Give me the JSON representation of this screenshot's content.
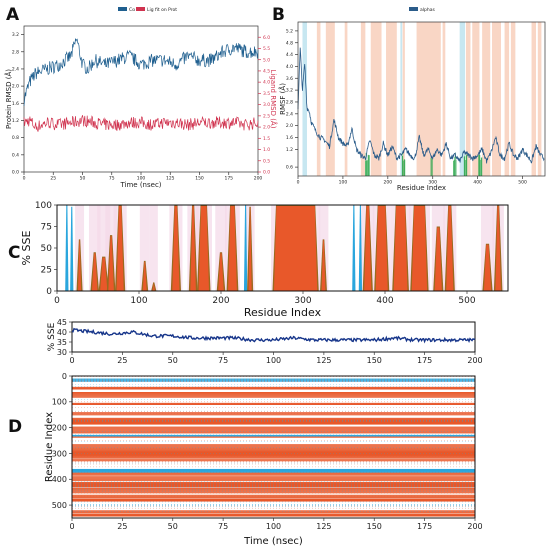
{
  "panels": {
    "a": "A",
    "b": "B",
    "c": "C",
    "d": "D"
  },
  "colors": {
    "protein_rmsd": "#1f5f8f",
    "ligand_rmsd": "#d0334f",
    "rmsf": "#2b5c8a",
    "alpha_bg": "#f7c8b2",
    "beta_bg": "#bde3ef",
    "contact": "#2fa84f",
    "helix": "#e8582a",
    "helix_dark": "#9a6a1f",
    "strand": "#2aa6dd",
    "sse_line": "#16358a",
    "gap_band": "#f3d8e8"
  },
  "chart_data": [
    {
      "panel": "A",
      "type": "line",
      "xlabel": "Time (nsec)",
      "ylabel": "Protein RMSD (Å)",
      "y2label": "Ligand RMSD (Å)",
      "legend": [
        "Cα",
        "Lig fit on Prot"
      ],
      "legend_position": "top-center",
      "xlim": [
        0,
        200
      ],
      "ylim": [
        0,
        3.4
      ],
      "y2lim": [
        0,
        6.5
      ],
      "xticks": [
        0,
        25,
        50,
        75,
        100,
        125,
        150,
        175,
        200
      ],
      "yticks": [
        0.0,
        0.4,
        0.8,
        1.2,
        1.6,
        2.0,
        2.4,
        2.8,
        3.2
      ],
      "y2ticks": [
        0.0,
        0.5,
        1.0,
        1.5,
        2.0,
        2.5,
        3.0,
        3.5,
        4.0,
        4.5,
        5.0,
        5.5,
        6.0
      ],
      "series": [
        {
          "name": "Cα",
          "x": [
            0,
            5,
            10,
            20,
            30,
            40,
            45,
            50,
            55,
            60,
            70,
            80,
            90,
            100,
            110,
            120,
            130,
            140,
            150,
            160,
            170,
            180,
            190,
            200
          ],
          "y": [
            1.7,
            2.1,
            2.3,
            2.4,
            2.5,
            2.7,
            3.1,
            2.5,
            2.4,
            2.6,
            2.5,
            2.6,
            2.7,
            2.5,
            2.6,
            2.6,
            2.5,
            2.7,
            2.6,
            2.6,
            2.8,
            2.9,
            2.8,
            2.8
          ]
        },
        {
          "name": "Lig fit on Prot",
          "x": [
            0,
            5,
            10,
            20,
            30,
            40,
            50,
            60,
            70,
            80,
            90,
            100,
            110,
            120,
            130,
            140,
            150,
            160,
            170,
            180,
            190,
            200
          ],
          "y": [
            2.2,
            2.3,
            2.0,
            2.2,
            2.1,
            2.2,
            2.3,
            2.2,
            2.1,
            2.1,
            2.2,
            2.2,
            2.1,
            2.2,
            2.2,
            2.1,
            2.2,
            2.2,
            2.2,
            2.2,
            2.1,
            2.2
          ]
        }
      ]
    },
    {
      "panel": "B",
      "type": "line",
      "xlabel": "Residue Index",
      "ylabel": "RMSF (Å)",
      "legend": [
        "alphas"
      ],
      "legend_position": "top-center",
      "xlim": [
        0,
        550
      ],
      "ylim": [
        0.3,
        5.5
      ],
      "xticks": [
        0,
        100,
        200,
        300,
        400,
        500
      ],
      "yticks": [
        0.6,
        1.2,
        1.6,
        2.0,
        2.4,
        2.8,
        3.2,
        3.6,
        4.0,
        4.4,
        4.8,
        5.2
      ],
      "series": [
        {
          "name": "alphas",
          "x": [
            0,
            5,
            10,
            15,
            20,
            25,
            30,
            40,
            50,
            60,
            70,
            80,
            90,
            100,
            110,
            120,
            130,
            140,
            150,
            160,
            170,
            180,
            190,
            200,
            210,
            220,
            230,
            240,
            250,
            260,
            270,
            280,
            290,
            300,
            310,
            320,
            330,
            340,
            350,
            360,
            370,
            380,
            390,
            400,
            410,
            420,
            430,
            440,
            450,
            460,
            470,
            480,
            490,
            500,
            510,
            520,
            530,
            540,
            548
          ],
          "y": [
            2.6,
            4.6,
            3.2,
            4.1,
            2.6,
            2.5,
            2.1,
            1.8,
            1.6,
            1.5,
            1.3,
            2.2,
            1.6,
            1.4,
            1.3,
            1.9,
            1.2,
            1.0,
            0.9,
            1.5,
            1.0,
            0.9,
            1.4,
            1.0,
            1.3,
            0.9,
            1.0,
            1.2,
            1.0,
            0.9,
            1.6,
            1.0,
            1.2,
            0.9,
            1.2,
            1.0,
            1.4,
            0.9,
            1.0,
            0.8,
            1.1,
            1.0,
            0.9,
            1.0,
            1.2,
            0.8,
            1.1,
            1.6,
            1.0,
            0.9,
            1.4,
            1.0,
            0.9,
            1.2,
            1.0,
            0.8,
            1.3,
            1.0,
            0.9
          ]
        }
      ]
    },
    {
      "panel": "C",
      "type": "area",
      "xlabel": "Residue Index",
      "ylabel": "% SSE",
      "xlim": [
        0,
        550
      ],
      "ylim": [
        0,
        100
      ],
      "xticks": [
        0,
        100,
        200,
        300,
        400,
        500
      ],
      "yticks": [
        0,
        25,
        50,
        75,
        100
      ],
      "segments": [
        {
          "kind": "strand",
          "from": 10,
          "to": 14,
          "value": 100
        },
        {
          "kind": "strand",
          "from": 16,
          "to": 20,
          "value": 98
        },
        {
          "kind": "helix",
          "from": 25,
          "to": 30,
          "value": 60
        },
        {
          "kind": "helix",
          "from": 42,
          "to": 50,
          "value": 45
        },
        {
          "kind": "helix",
          "from": 52,
          "to": 62,
          "value": 40
        },
        {
          "kind": "helix",
          "from": 62,
          "to": 70,
          "value": 65
        },
        {
          "kind": "helix",
          "from": 72,
          "to": 82,
          "value": 100
        },
        {
          "kind": "helix",
          "from": 104,
          "to": 110,
          "value": 35
        },
        {
          "kind": "helix",
          "from": 116,
          "to": 120,
          "value": 10
        },
        {
          "kind": "helix",
          "from": 140,
          "to": 150,
          "value": 100
        },
        {
          "kind": "helix",
          "from": 162,
          "to": 170,
          "value": 100
        },
        {
          "kind": "helix",
          "from": 172,
          "to": 186,
          "value": 100
        },
        {
          "kind": "helix",
          "from": 196,
          "to": 204,
          "value": 45
        },
        {
          "kind": "helix",
          "from": 208,
          "to": 220,
          "value": 100
        },
        {
          "kind": "strand",
          "from": 228,
          "to": 232,
          "value": 100
        },
        {
          "kind": "helix",
          "from": 233,
          "to": 238,
          "value": 98
        },
        {
          "kind": "helix",
          "from": 264,
          "to": 318,
          "value": 100
        },
        {
          "kind": "helix",
          "from": 322,
          "to": 328,
          "value": 60
        },
        {
          "kind": "strand",
          "from": 360,
          "to": 364,
          "value": 100
        },
        {
          "kind": "strand",
          "from": 368,
          "to": 372,
          "value": 100
        },
        {
          "kind": "helix",
          "from": 374,
          "to": 384,
          "value": 100
        },
        {
          "kind": "helix",
          "from": 388,
          "to": 404,
          "value": 100
        },
        {
          "kind": "helix",
          "from": 410,
          "to": 428,
          "value": 100
        },
        {
          "kind": "helix",
          "from": 432,
          "to": 452,
          "value": 100
        },
        {
          "kind": "helix",
          "from": 460,
          "to": 470,
          "value": 75
        },
        {
          "kind": "helix",
          "from": 474,
          "to": 484,
          "value": 100
        },
        {
          "kind": "helix",
          "from": 520,
          "to": 530,
          "value": 55
        },
        {
          "kind": "helix",
          "from": 534,
          "to": 542,
          "value": 100
        }
      ]
    },
    {
      "panel": "D-top",
      "type": "line",
      "ylabel": "% SSE",
      "xlim": [
        0,
        200
      ],
      "ylim": [
        30,
        45
      ],
      "xticks": [
        0,
        25,
        50,
        75,
        100,
        125,
        150,
        175,
        200
      ],
      "yticks": [
        30,
        35,
        40,
        45
      ],
      "series": [
        {
          "name": "% SSE",
          "x": [
            0,
            10,
            20,
            30,
            40,
            50,
            60,
            70,
            80,
            90,
            100,
            110,
            120,
            130,
            140,
            150,
            160,
            170,
            180,
            190,
            200
          ],
          "y": [
            41,
            40,
            39,
            40,
            38,
            38,
            37,
            37,
            37,
            36,
            36,
            37,
            36,
            36,
            36,
            36,
            37,
            36,
            36,
            36,
            36
          ]
        }
      ]
    },
    {
      "panel": "D-bottom",
      "type": "heatmap",
      "xlabel": "Time (nsec)",
      "ylabel": "Residue Index",
      "xlim": [
        0,
        200
      ],
      "ylim": [
        0,
        550
      ],
      "xticks": [
        0,
        25,
        50,
        75,
        100,
        125,
        150,
        175,
        200
      ],
      "yticks": [
        0,
        100,
        200,
        300,
        400,
        500
      ],
      "helix_bands": [
        [
          42,
          50
        ],
        [
          62,
          82
        ],
        [
          104,
          110
        ],
        [
          140,
          150
        ],
        [
          162,
          186
        ],
        [
          196,
          220
        ],
        [
          233,
          238
        ],
        [
          264,
          318
        ],
        [
          322,
          328
        ],
        [
          374,
          384
        ],
        [
          388,
          404
        ],
        [
          410,
          428
        ],
        [
          432,
          452
        ],
        [
          460,
          470
        ],
        [
          474,
          484
        ],
        [
          520,
          530
        ],
        [
          534,
          542
        ]
      ],
      "strand_bands": [
        [
          10,
          20
        ],
        [
          228,
          232
        ],
        [
          360,
          372
        ]
      ]
    }
  ]
}
